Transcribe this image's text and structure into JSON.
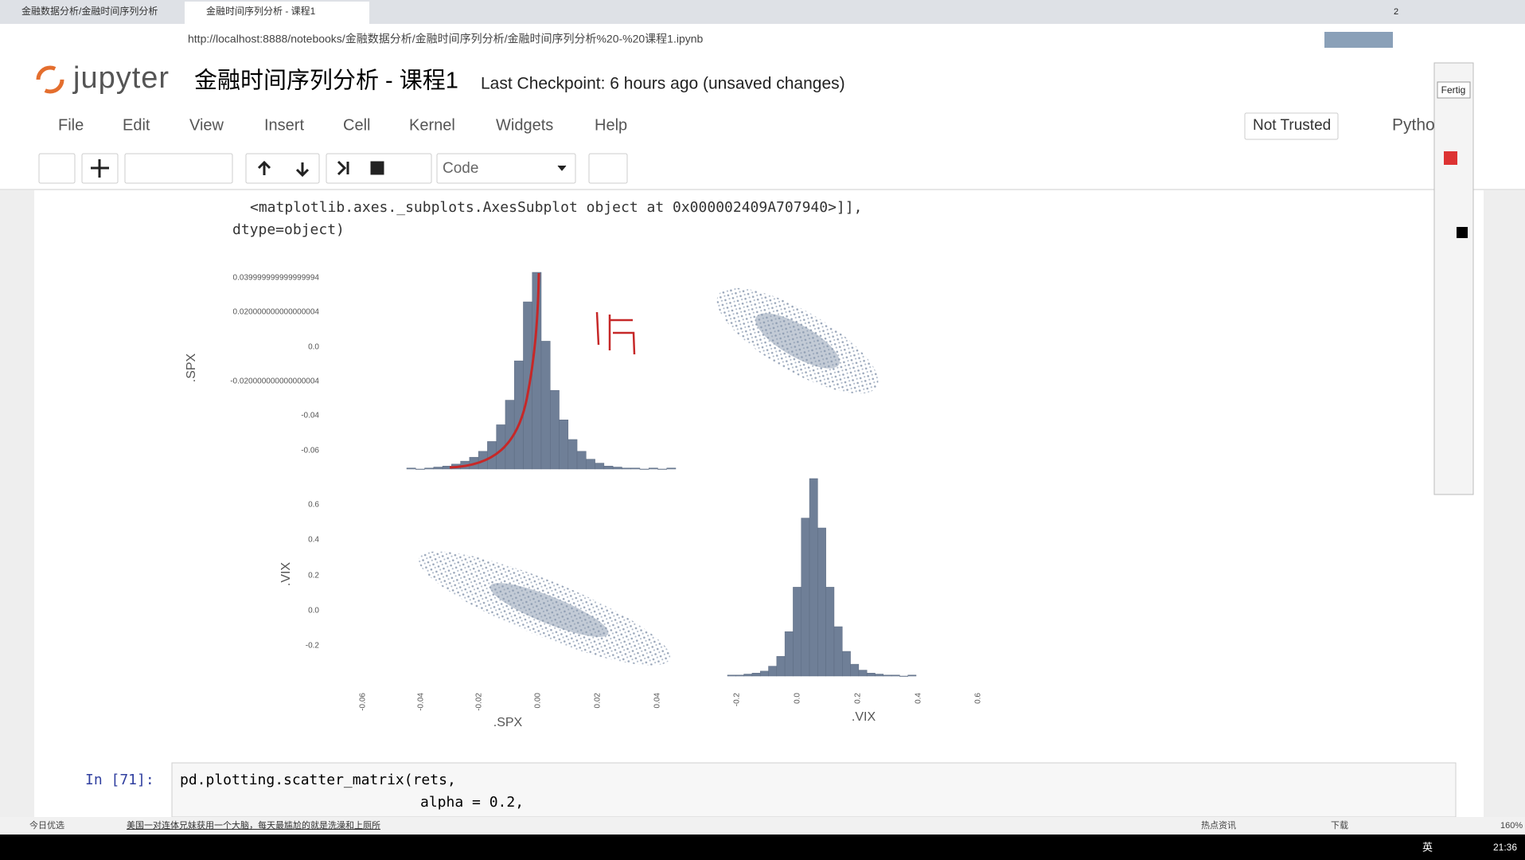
{
  "browser": {
    "tabs": [
      "金融数据分析/金融时间序列分析",
      "金融时间序列分析 - 课程1"
    ],
    "url": "http://localhost:8888/notebooks/金融数据分析/金融时间序列分析/金融时间序列分析%20-%20课程1.ipynb",
    "badge": "2"
  },
  "header": {
    "logo": "jupyter",
    "title": "金融时间序列分析 - 课程1",
    "checkpoint": "Last Checkpoint: 6 hours ago (unsaved changes)",
    "trusted": "Not Trusted",
    "kernel": "Pytho"
  },
  "menu": [
    "File",
    "Edit",
    "View",
    "Insert",
    "Cell",
    "Kernel",
    "Widgets",
    "Help"
  ],
  "toolbar": {
    "cell_type": "Code"
  },
  "output": {
    "lines": [
      "<matplotlib.axes._subplots.AxesSubplot object at 0x000002409A707940>]],",
      "dtype=object)"
    ]
  },
  "plot": {
    "spx_label": ".SPX",
    "vix_label": ".VIX",
    "spx_yticks": [
      "0.039999999999999994",
      "0.020000000000000004",
      "0.0",
      "-0.020000000000000004",
      "-0.04",
      "-0.06"
    ],
    "vix_yticks": [
      "0.6",
      "0.4",
      "0.2",
      "0.0",
      "-0.2"
    ],
    "spx_xticks": [
      "-0.06",
      "-0.04",
      "-0.02",
      "0.00",
      "0.02",
      "0.04"
    ],
    "vix_xticks": [
      "-0.2",
      "0.0",
      "0.2",
      "0.4",
      "0.6"
    ],
    "hist_spx": [
      1,
      0,
      1,
      2,
      3,
      5,
      8,
      12,
      18,
      28,
      45,
      70,
      110,
      170,
      200,
      130,
      80,
      50,
      30,
      18,
      10,
      6,
      3,
      2,
      1,
      1,
      0,
      1,
      0,
      1
    ],
    "hist_vix": [
      1,
      1,
      2,
      3,
      5,
      10,
      20,
      45,
      90,
      160,
      200,
      150,
      90,
      50,
      25,
      12,
      6,
      3,
      2,
      1,
      1,
      0,
      1
    ]
  },
  "code_cell": {
    "prompt": "In  [71]:",
    "lines": [
      "pd.plotting.scatter_matrix(rets,",
      "alpha = 0.2,"
    ]
  },
  "status": {
    "left": "今日优选",
    "news": "美国一对连体兄妹获用一个大脑，每天最尴尬的就是洗澡和上厕所",
    "hot": "热点资讯",
    "download": "下载",
    "zoom": "160%"
  },
  "taskbar": {
    "ime": "英",
    "time": "21:36"
  },
  "annotation_toolbar": {
    "done": "Fertig"
  }
}
